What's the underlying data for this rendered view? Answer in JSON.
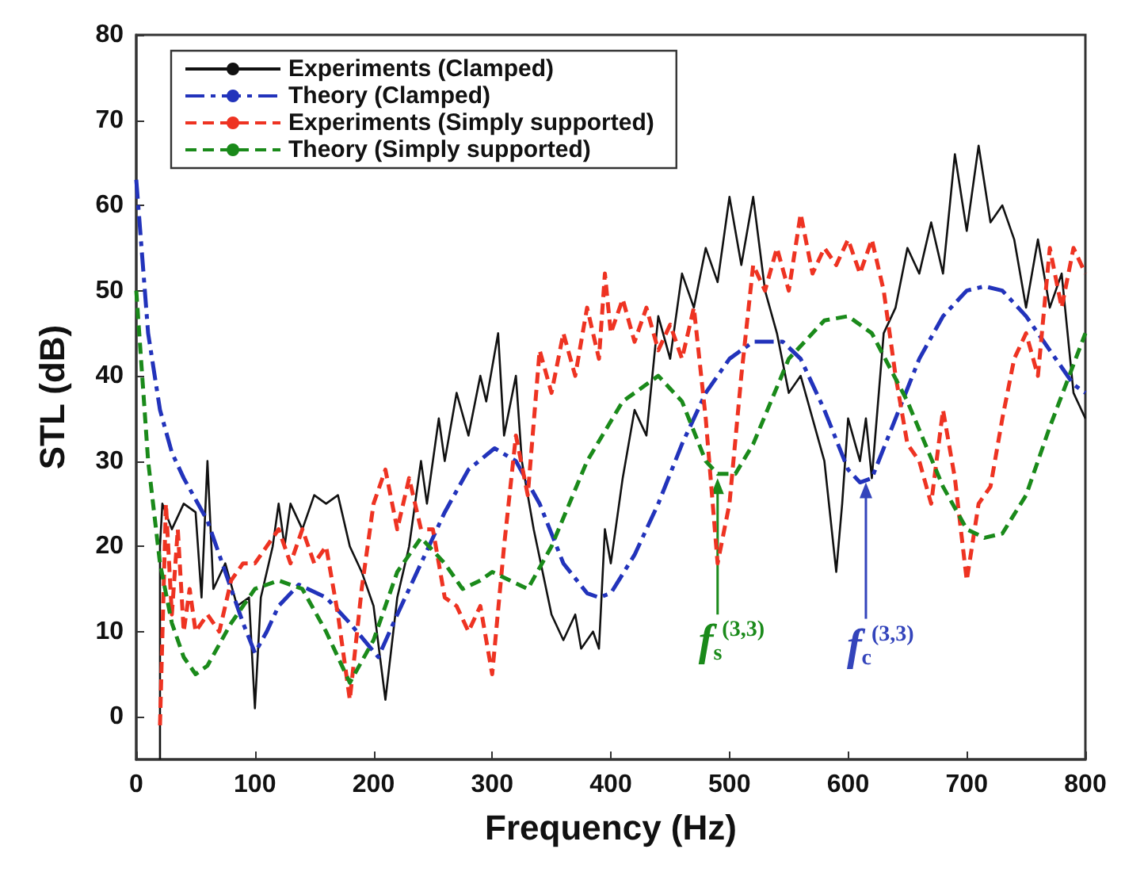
{
  "chart_data": {
    "type": "line",
    "xlabel": "Frequency (Hz)",
    "ylabel": "STL (dB)",
    "xlim": [
      0,
      800
    ],
    "xticks": [
      0,
      100,
      200,
      300,
      400,
      500,
      600,
      700,
      800
    ],
    "ylim": [
      -5,
      80
    ],
    "yticks": [
      0,
      10,
      20,
      30,
      40,
      50,
      60,
      70,
      80
    ],
    "grid": false,
    "legend": "top left",
    "marker": "none",
    "series": [
      {
        "name": "Experiments (Clamped)",
        "color": "#111111",
        "line_style": "solid",
        "x": [
          20,
          20,
          22,
          30,
          40,
          50,
          55,
          60,
          65,
          75,
          85,
          95,
          100,
          105,
          115,
          120,
          125,
          130,
          140,
          150,
          160,
          170,
          180,
          190,
          200,
          210,
          220,
          230,
          240,
          245,
          255,
          260,
          270,
          280,
          290,
          295,
          305,
          310,
          320,
          325,
          335,
          350,
          360,
          370,
          375,
          385,
          390,
          395,
          400,
          410,
          420,
          430,
          440,
          450,
          460,
          470,
          480,
          490,
          500,
          510,
          520,
          530,
          540,
          550,
          560,
          570,
          580,
          590,
          595,
          600,
          610,
          615,
          620,
          630,
          640,
          650,
          660,
          670,
          680,
          690,
          700,
          710,
          720,
          730,
          740,
          750,
          760,
          770,
          780,
          790,
          800
        ],
        "values": [
          -5,
          20,
          25,
          22,
          25,
          24,
          14,
          30,
          15,
          18,
          13,
          14,
          1,
          14,
          20,
          25,
          20,
          25,
          22,
          26,
          25,
          26,
          20,
          17,
          13,
          2,
          14,
          20,
          30,
          25,
          35,
          30,
          38,
          33,
          40,
          37,
          45,
          33,
          40,
          30,
          22,
          12,
          9,
          12,
          8,
          10,
          8,
          22,
          18,
          28,
          36,
          33,
          47,
          42,
          52,
          48,
          55,
          51,
          61,
          53,
          61,
          50,
          45,
          38,
          40,
          35,
          30,
          17,
          25,
          35,
          30,
          35,
          28,
          45,
          48,
          55,
          52,
          58,
          52,
          66,
          57,
          67,
          58,
          60,
          56,
          48,
          56,
          48,
          52,
          38,
          35
        ]
      },
      {
        "name": "Theory (Clamped)",
        "color": "#2233bb",
        "line_style": "dashdot",
        "x": [
          0,
          10,
          20,
          30,
          40,
          50,
          60,
          70,
          80,
          90,
          100,
          110,
          120,
          137,
          160,
          180,
          204,
          220,
          240,
          260,
          280,
          302,
          320,
          340,
          360,
          380,
          390,
          400,
          420,
          440,
          460,
          480,
          500,
          520,
          545,
          560,
          580,
          600,
          610,
          620,
          640,
          660,
          680,
          700,
          715,
          730,
          750,
          770,
          790,
          800
        ],
        "values": [
          63,
          45,
          36,
          31,
          28,
          25.5,
          23,
          19,
          15,
          11,
          7.5,
          10,
          13,
          15.5,
          14,
          11,
          7,
          12,
          18,
          24,
          29,
          31.5,
          30,
          25,
          18,
          14.5,
          14,
          14.5,
          19,
          25,
          32,
          38,
          42,
          44,
          44,
          42,
          36,
          29,
          27.5,
          28,
          35,
          42,
          47,
          50,
          50.5,
          50,
          47,
          43,
          39,
          38
        ]
      },
      {
        "name": "Experiments (Simply supported)",
        "color": "#ee3322",
        "line_style": "dashed",
        "x": [
          20,
          25,
          30,
          35,
          40,
          45,
          50,
          60,
          70,
          80,
          90,
          100,
          110,
          120,
          130,
          140,
          150,
          160,
          170,
          180,
          190,
          200,
          210,
          220,
          230,
          240,
          250,
          260,
          270,
          280,
          290,
          300,
          310,
          320,
          330,
          340,
          350,
          360,
          370,
          380,
          390,
          395,
          400,
          410,
          420,
          430,
          440,
          450,
          460,
          470,
          480,
          490,
          500,
          510,
          520,
          530,
          540,
          550,
          560,
          570,
          580,
          590,
          600,
          610,
          620,
          630,
          640,
          650,
          660,
          670,
          680,
          690,
          700,
          710,
          720,
          730,
          740,
          750,
          760,
          770,
          780,
          790,
          800
        ],
        "values": [
          -1,
          25,
          12,
          22,
          10,
          15,
          10,
          12,
          10,
          16,
          18,
          18,
          20,
          22,
          18,
          22,
          18,
          20,
          12,
          2,
          15,
          25,
          29,
          22,
          28,
          22,
          22,
          14,
          13,
          10,
          13,
          5,
          20,
          33,
          26,
          43,
          38,
          45,
          40,
          48,
          42,
          52,
          45,
          49,
          44,
          48,
          43,
          46,
          42,
          48,
          35,
          18,
          25,
          40,
          53,
          50,
          55,
          50,
          59,
          52,
          55,
          53,
          56,
          52,
          56,
          50,
          40,
          32,
          30,
          25,
          36,
          28,
          16,
          25,
          27,
          35,
          42,
          45,
          40,
          55,
          48,
          55,
          52
        ]
      },
      {
        "name": "Theory (Simply supported)",
        "color": "#1a8a1a",
        "line_style": "dashed",
        "x": [
          0,
          10,
          20,
          30,
          40,
          50,
          60,
          80,
          100,
          120,
          140,
          160,
          180,
          200,
          220,
          240,
          260,
          275,
          290,
          300,
          315,
          330,
          350,
          380,
          410,
          440,
          460,
          480,
          490,
          505,
          520,
          550,
          580,
          600,
          620,
          650,
          680,
          700,
          715,
          730,
          750,
          770,
          800
        ],
        "values": [
          50,
          30,
          18,
          11,
          7,
          5,
          6,
          11,
          15,
          16,
          15,
          10,
          4,
          9,
          17,
          21,
          18,
          15,
          16,
          17,
          16,
          15,
          20,
          30,
          37,
          40,
          37,
          30,
          28.5,
          28.5,
          32,
          42,
          46.5,
          47,
          45,
          37,
          27,
          22,
          21,
          21.5,
          26,
          34,
          45
        ]
      }
    ],
    "annotations": [
      {
        "text": "f$_{s}$$^{(3,3)}$",
        "x": 490,
        "y": 28
      },
      {
        "text": "f$_{c}$$^{(3,3)}$",
        "x": 615,
        "y": 27.5
      }
    ]
  }
}
